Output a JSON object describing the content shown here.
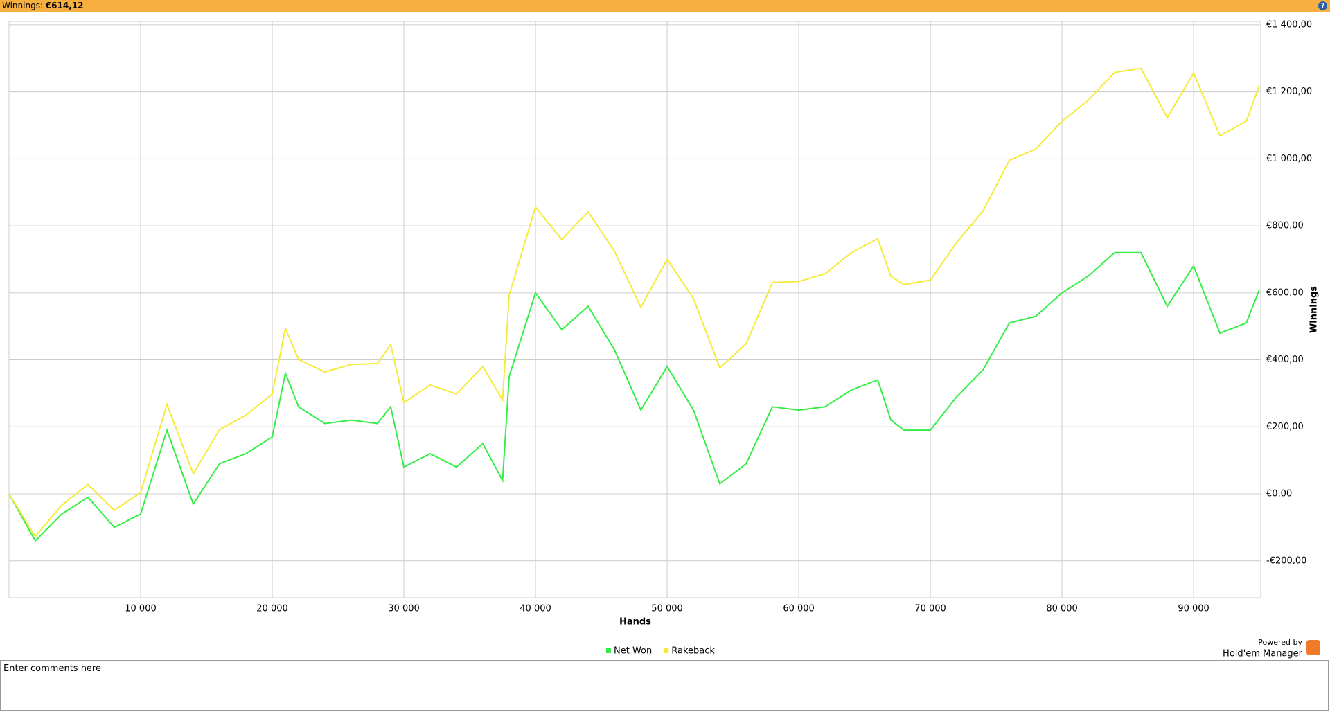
{
  "header": {
    "label": "Winnings:",
    "total": "€614,12"
  },
  "chart_data": {
    "type": "line",
    "x_label": "Hands",
    "y_label": "Winnings",
    "x": [
      0,
      2000,
      4000,
      6000,
      8000,
      10000,
      12000,
      14000,
      16000,
      18000,
      20000,
      21000,
      22000,
      24000,
      26000,
      28000,
      29000,
      30000,
      32000,
      34000,
      36000,
      37500,
      38000,
      40000,
      42000,
      44000,
      46000,
      48000,
      50000,
      52000,
      54000,
      56000,
      58000,
      60000,
      62000,
      64000,
      66000,
      67000,
      68000,
      70000,
      72000,
      74000,
      76000,
      78000,
      80000,
      82000,
      84000,
      86000,
      88000,
      90000,
      92000,
      94000,
      95000
    ],
    "series": [
      {
        "name": "Net Won",
        "color": "#33ee44",
        "values": [
          0,
          -140,
          -60,
          -10,
          -100,
          -60,
          190,
          -30,
          90,
          120,
          170,
          360,
          260,
          210,
          220,
          210,
          260,
          80,
          120,
          80,
          150,
          40,
          350,
          600,
          490,
          560,
          430,
          250,
          380,
          250,
          30,
          90,
          260,
          250,
          260,
          310,
          340,
          220,
          190,
          190,
          290,
          370,
          510,
          530,
          600,
          650,
          720,
          720,
          560,
          680,
          480,
          510,
          610
        ]
      },
      {
        "name": "Rakeback",
        "color": "#f5ea3a",
        "values": [
          0,
          -127,
          -34,
          28,
          -49,
          4,
          267,
          60,
          192,
          235,
          298,
          494,
          401,
          364,
          386,
          389,
          446,
          272,
          325,
          298,
          380,
          280,
          593,
          856,
          759,
          842,
          724,
          557,
          700,
          583,
          376,
          448,
          631,
          634,
          657,
          720,
          762,
          649,
          625,
          638,
          751,
          844,
          996,
          1029,
          1112,
          1175,
          1258,
          1270,
          1123,
          1256,
          1069,
          1112,
          1220
        ]
      }
    ],
    "xlim": [
      0,
      95100
    ],
    "ylim": [
      -310,
      1410
    ],
    "xticks": [
      {
        "value": 10000,
        "label": "10 000"
      },
      {
        "value": 20000,
        "label": "20 000"
      },
      {
        "value": 30000,
        "label": "30 000"
      },
      {
        "value": 40000,
        "label": "40 000"
      },
      {
        "value": 50000,
        "label": "50 000"
      },
      {
        "value": 60000,
        "label": "60 000"
      },
      {
        "value": 70000,
        "label": "70 000"
      },
      {
        "value": 80000,
        "label": "80 000"
      },
      {
        "value": 90000,
        "label": "90 000"
      }
    ],
    "yticks": [
      {
        "value": -200,
        "label": "-€200,00"
      },
      {
        "value": 0,
        "label": "€0,00"
      },
      {
        "value": 200,
        "label": "€200,00"
      },
      {
        "value": 400,
        "label": "€400,00"
      },
      {
        "value": 600,
        "label": "€600,00"
      },
      {
        "value": 800,
        "label": "€800,00"
      },
      {
        "value": 1000,
        "label": "€1 000,00"
      },
      {
        "value": 1200,
        "label": "€1 200,00"
      },
      {
        "value": 1400,
        "label": "€1 400,00"
      }
    ],
    "grid": true,
    "y_axis_side": "right",
    "legend": "bottom"
  },
  "branding": {
    "powered_by": "Powered by",
    "product": "Hold'em Manager"
  },
  "comments": {
    "placeholder": "Enter comments here"
  }
}
